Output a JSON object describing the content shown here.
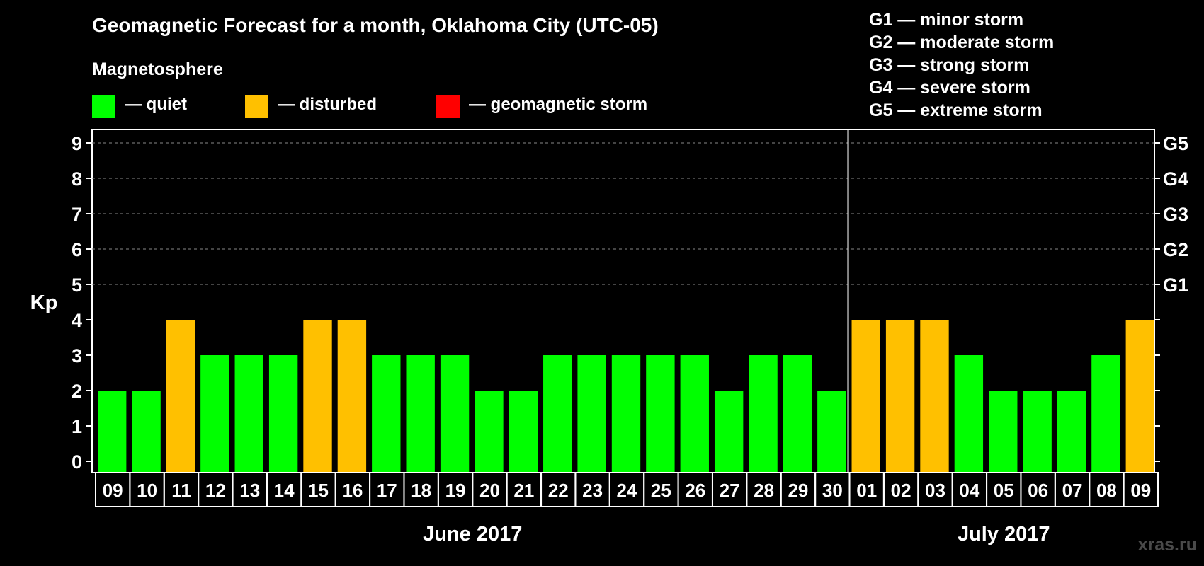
{
  "title": "Geomagnetic Forecast for a month, Oklahoma City (UTC-05)",
  "subtitle": "Magnetosphere",
  "legend": [
    {
      "label": "— quiet",
      "color": "#00ff00"
    },
    {
      "label": "— disturbed",
      "color": "#ffc000"
    },
    {
      "label": "— geomagnetic storm",
      "color": "#ff0000"
    }
  ],
  "storm_scale": [
    "G1 — minor storm",
    "G2 — moderate storm",
    "G3 — strong storm",
    "G4 — severe storm",
    "G5 — extreme storm"
  ],
  "watermark": "xras.ru",
  "chart_data": {
    "type": "bar",
    "ylabel": "Kp",
    "ylim": [
      0,
      9
    ],
    "yticks": [
      0,
      1,
      2,
      3,
      4,
      5,
      6,
      7,
      8,
      9
    ],
    "right_axis_labels": [
      {
        "value": 5,
        "label": "G1"
      },
      {
        "value": 6,
        "label": "G2"
      },
      {
        "value": 7,
        "label": "G3"
      },
      {
        "value": 8,
        "label": "G4"
      },
      {
        "value": 9,
        "label": "G5"
      }
    ],
    "grid": "dashed horizontal at Kp 5 to 9",
    "categories": [
      "09",
      "10",
      "11",
      "12",
      "13",
      "14",
      "15",
      "16",
      "17",
      "18",
      "19",
      "20",
      "21",
      "22",
      "23",
      "24",
      "25",
      "26",
      "27",
      "28",
      "29",
      "30",
      "01",
      "02",
      "03",
      "04",
      "05",
      "06",
      "07",
      "08",
      "09"
    ],
    "values": [
      2,
      2,
      4,
      3,
      3,
      3,
      4,
      4,
      3,
      3,
      3,
      2,
      2,
      3,
      3,
      3,
      3,
      3,
      2,
      3,
      3,
      2,
      4,
      4,
      4,
      3,
      2,
      2,
      2,
      3,
      4
    ],
    "status": [
      "quiet",
      "quiet",
      "disturbed",
      "quiet",
      "quiet",
      "quiet",
      "disturbed",
      "disturbed",
      "quiet",
      "quiet",
      "quiet",
      "quiet",
      "quiet",
      "quiet",
      "quiet",
      "quiet",
      "quiet",
      "quiet",
      "quiet",
      "quiet",
      "quiet",
      "quiet",
      "disturbed",
      "disturbed",
      "disturbed",
      "quiet",
      "quiet",
      "quiet",
      "quiet",
      "quiet",
      "disturbed"
    ],
    "colors": {
      "quiet": "#00ff00",
      "disturbed": "#ffc000",
      "storm": "#ff0000"
    },
    "months": [
      {
        "label": "June 2017",
        "start": 0,
        "end": 21
      },
      {
        "label": "July 2017",
        "start": 22,
        "end": 30
      }
    ]
  }
}
